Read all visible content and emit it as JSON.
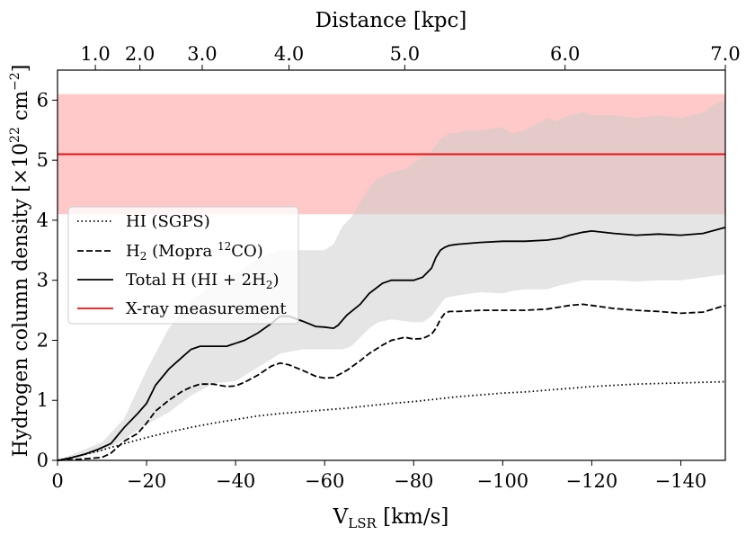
{
  "chart_data": {
    "type": "line",
    "title": "",
    "xlabel": "V",
    "xlabel_sub": "LSR",
    "xlabel_unit": " [km/s]",
    "ylabel": "Hydrogen column density [×10",
    "ylabel_exp": "22",
    "ylabel_unit": " cm",
    "ylabel_exp2": "−2",
    "ylabel_close": "]",
    "top_xlabel": "Distance [kpc]",
    "xlim": [
      0,
      -150
    ],
    "ylim": [
      0,
      6.5
    ],
    "x_ticks": [
      0,
      -20,
      -40,
      -60,
      -80,
      -100,
      -120,
      -140
    ],
    "x_tick_labels": [
      "0",
      "−20",
      "−40",
      "−60",
      "−80",
      "−100",
      "−120",
      "−140"
    ],
    "y_ticks": [
      0,
      1,
      2,
      3,
      4,
      5,
      6
    ],
    "y_tick_labels": [
      "0",
      "1",
      "2",
      "3",
      "4",
      "5",
      "6"
    ],
    "top_ticks": [
      {
        "v": -8.5,
        "label": "1.0"
      },
      {
        "v": -18.5,
        "label": "2.0"
      },
      {
        "v": -32.5,
        "label": "3.0"
      },
      {
        "v": -52,
        "label": "4.0"
      },
      {
        "v": -78,
        "label": "5.0"
      },
      {
        "v": -114,
        "label": "6.0"
      },
      {
        "v": -150,
        "label": "7.0"
      }
    ],
    "grid": false,
    "legend_position": "center-left",
    "xray": {
      "value": 5.1,
      "band": [
        4.1,
        6.1
      ],
      "color": "#ee1111",
      "band_color": "#ffc9c9"
    },
    "series": [
      {
        "name": "HI (SGPS)",
        "style": "dotted",
        "x": [
          0,
          -5,
          -10,
          -15,
          -20,
          -25,
          -30,
          -35,
          -40,
          -45,
          -50,
          -55,
          -60,
          -65,
          -70,
          -75,
          -80,
          -85,
          -90,
          -95,
          -100,
          -105,
          -110,
          -115,
          -120,
          -125,
          -130,
          -135,
          -140,
          -145,
          -150
        ],
        "y": [
          0,
          0.08,
          0.17,
          0.28,
          0.38,
          0.47,
          0.55,
          0.62,
          0.68,
          0.74,
          0.78,
          0.81,
          0.84,
          0.87,
          0.91,
          0.95,
          0.98,
          1.02,
          1.06,
          1.09,
          1.12,
          1.14,
          1.17,
          1.2,
          1.23,
          1.25,
          1.27,
          1.28,
          1.29,
          1.3,
          1.31
        ]
      },
      {
        "name": "H",
        "name_sub": "2",
        "name_rest": " (Mopra ",
        "name_sup": "12",
        "name_end": "CO)",
        "style": "dashed",
        "x": [
          0,
          -5,
          -10,
          -12,
          -15,
          -18,
          -20,
          -22,
          -25,
          -28,
          -30,
          -32,
          -35,
          -38,
          -40,
          -42,
          -45,
          -48,
          -50,
          -52,
          -55,
          -58,
          -60,
          -62,
          -63,
          -65,
          -68,
          -70,
          -73,
          -75,
          -78,
          -80,
          -82,
          -84,
          -85,
          -86,
          -87,
          -88,
          -90,
          -95,
          -100,
          -105,
          -110,
          -115,
          -118,
          -120,
          -125,
          -130,
          -135,
          -140,
          -145,
          -150
        ],
        "y": [
          0,
          0.02,
          0.05,
          0.12,
          0.32,
          0.45,
          0.62,
          0.82,
          1.0,
          1.15,
          1.22,
          1.27,
          1.27,
          1.23,
          1.24,
          1.3,
          1.42,
          1.57,
          1.62,
          1.59,
          1.5,
          1.4,
          1.37,
          1.38,
          1.42,
          1.5,
          1.66,
          1.78,
          1.92,
          2.0,
          2.05,
          2.02,
          2.03,
          2.1,
          2.2,
          2.35,
          2.45,
          2.48,
          2.48,
          2.5,
          2.5,
          2.5,
          2.52,
          2.58,
          2.6,
          2.58,
          2.53,
          2.5,
          2.48,
          2.45,
          2.47,
          2.58
        ]
      },
      {
        "name": "Total H (HI + 2H",
        "name_sub": "2",
        "name_end": ")",
        "style": "solid",
        "x": [
          0,
          -3,
          -6,
          -9,
          -12,
          -15,
          -18,
          -20,
          -22,
          -25,
          -28,
          -30,
          -32,
          -35,
          -38,
          -40,
          -42,
          -45,
          -48,
          -50,
          -52,
          -55,
          -58,
          -60,
          -62,
          -63,
          -65,
          -68,
          -70,
          -73,
          -75,
          -78,
          -80,
          -82,
          -84,
          -85,
          -86,
          -87,
          -88,
          -90,
          -95,
          -100,
          -105,
          -110,
          -113,
          -115,
          -118,
          -120,
          -125,
          -130,
          -135,
          -140,
          -145,
          -150
        ],
        "y": [
          0,
          0.04,
          0.1,
          0.18,
          0.28,
          0.55,
          0.78,
          0.95,
          1.25,
          1.52,
          1.72,
          1.85,
          1.9,
          1.9,
          1.9,
          1.95,
          2.0,
          2.12,
          2.28,
          2.4,
          2.4,
          2.32,
          2.23,
          2.22,
          2.2,
          2.25,
          2.42,
          2.6,
          2.78,
          2.95,
          3.0,
          3.0,
          3.0,
          3.05,
          3.2,
          3.38,
          3.5,
          3.55,
          3.58,
          3.6,
          3.63,
          3.65,
          3.65,
          3.67,
          3.7,
          3.75,
          3.8,
          3.82,
          3.78,
          3.75,
          3.77,
          3.75,
          3.78,
          3.88
        ]
      },
      {
        "name": "X-ray measurement",
        "style": "solid-red"
      }
    ],
    "uncertainty_band": {
      "color": "#cccccc",
      "x": [
        0,
        -5,
        -10,
        -15,
        -20,
        -25,
        -30,
        -35,
        -40,
        -45,
        -50,
        -55,
        -60,
        -62,
        -64,
        -66,
        -68,
        -70,
        -72,
        -75,
        -78,
        -80,
        -82,
        -84,
        -86,
        -87,
        -88,
        -90,
        -92,
        -95,
        -100,
        -102,
        -105,
        -110,
        -112,
        -115,
        -118,
        -120,
        -125,
        -130,
        -135,
        -140,
        -145,
        -148,
        -150
      ],
      "upper": [
        0,
        0.15,
        0.3,
        0.7,
        1.5,
        2.2,
        2.65,
        2.95,
        3.1,
        3.35,
        3.5,
        3.5,
        3.5,
        3.6,
        3.9,
        4.05,
        4.3,
        4.55,
        4.7,
        4.8,
        4.85,
        4.95,
        5.05,
        5.15,
        5.35,
        5.4,
        5.45,
        5.45,
        5.5,
        5.5,
        5.55,
        5.45,
        5.5,
        5.7,
        5.65,
        5.75,
        5.8,
        5.75,
        5.75,
        5.7,
        5.75,
        5.7,
        5.8,
        5.95,
        6.0
      ],
      "lower": [
        0,
        0.05,
        0.15,
        0.35,
        0.6,
        0.8,
        1.08,
        1.28,
        1.32,
        1.55,
        1.78,
        1.85,
        1.85,
        1.85,
        1.85,
        1.9,
        2.05,
        2.2,
        2.3,
        2.35,
        2.32,
        2.3,
        2.3,
        2.4,
        2.6,
        2.7,
        2.72,
        2.75,
        2.77,
        2.8,
        2.78,
        2.82,
        2.85,
        2.85,
        2.9,
        2.95,
        3.0,
        3.0,
        3.0,
        2.98,
        3.0,
        3.0,
        3.05,
        3.08,
        3.1
      ]
    }
  }
}
